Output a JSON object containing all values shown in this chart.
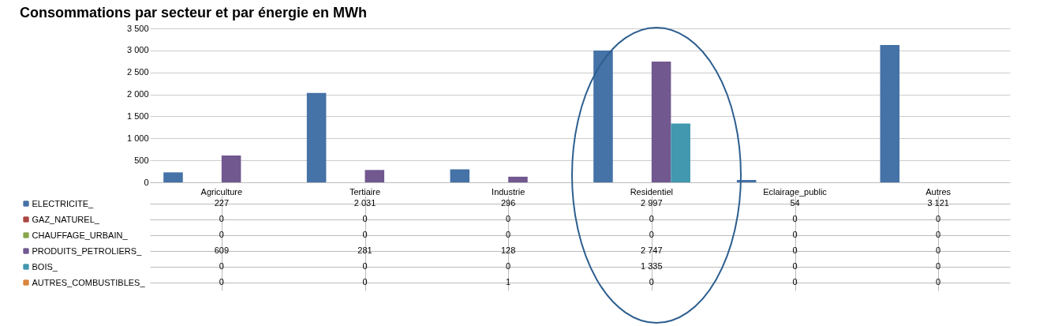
{
  "chart_data": {
    "type": "bar",
    "title": "Consommations par secteur et par énergie en MWh",
    "categories": [
      "Agriculture",
      "Tertiaire",
      "Industrie",
      "Residentiel",
      "Eclairage_public",
      "Autres"
    ],
    "series": [
      {
        "name": "ELECTRICITE_",
        "color": "#4572a7",
        "values": [
          227,
          2031,
          296,
          2997,
          54,
          3121
        ]
      },
      {
        "name": "GAZ_NATUREL_",
        "color": "#aa4643",
        "values": [
          0,
          0,
          0,
          0,
          0,
          0
        ]
      },
      {
        "name": "CHAUFFAGE_URBAIN_",
        "color": "#89a54e",
        "values": [
          0,
          0,
          0,
          0,
          0,
          0
        ]
      },
      {
        "name": "PRODUITS_PETROLIERS_",
        "color": "#71588f",
        "values": [
          609,
          281,
          128,
          2747,
          0,
          0
        ]
      },
      {
        "name": "BOIS_",
        "color": "#4198af",
        "values": [
          0,
          0,
          0,
          1335,
          0,
          0
        ]
      },
      {
        "name": "AUTRES_COMBUSTIBLES_",
        "color": "#db843d",
        "values": [
          0,
          0,
          1,
          0,
          0,
          0
        ]
      }
    ],
    "ylim": [
      0,
      3500
    ],
    "yticks": [
      0,
      500,
      1000,
      1500,
      2000,
      2500,
      3000,
      3500
    ],
    "grid": "y",
    "data_labels": true,
    "legend": "bottom left"
  }
}
